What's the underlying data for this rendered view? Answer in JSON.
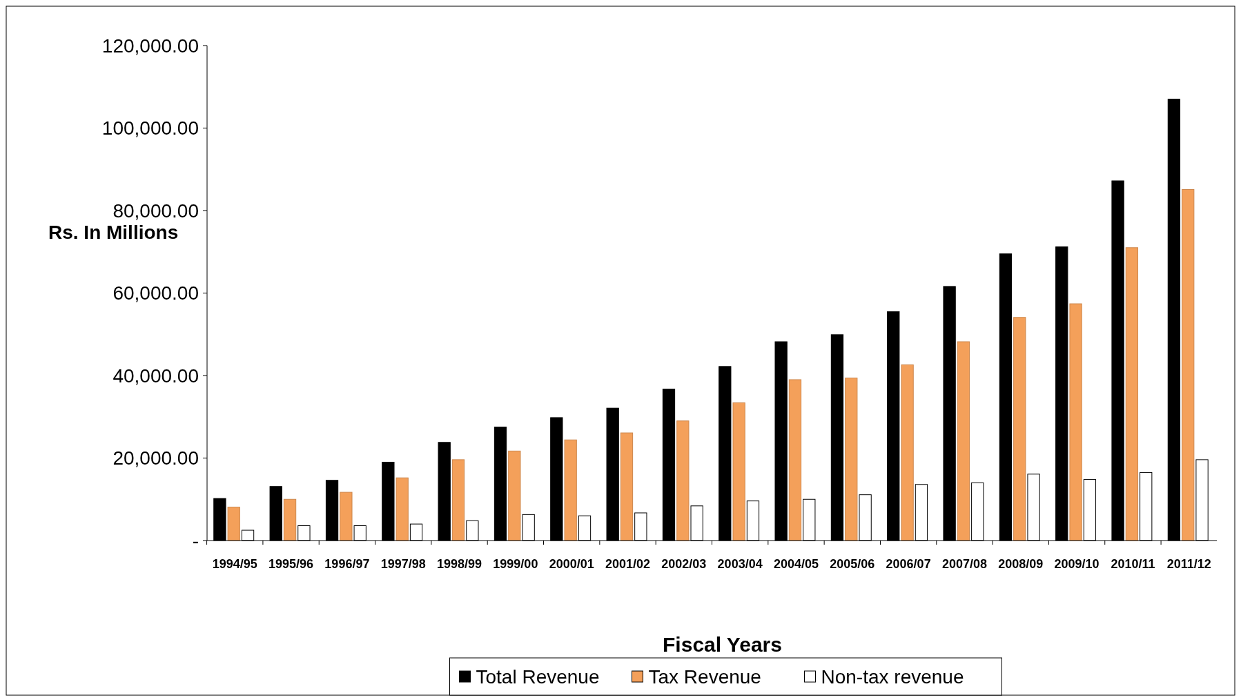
{
  "chart_data": {
    "type": "bar",
    "xlabel": "Fiscal Years",
    "ylabel": "Rs. In Millions",
    "categories": [
      "1994/95",
      "1995/96",
      "1996/97",
      "1997/98",
      "1998/99",
      "1999/00",
      "2000/01",
      "2001/02",
      "2002/03",
      "2003/04",
      "2004/05",
      "2005/06",
      "2006/07",
      "2007/08",
      "2008/09",
      "2009/10",
      "2010/11",
      "2011/12"
    ],
    "series": [
      {
        "name": "Total Revenue",
        "color": "#000000",
        "values": [
          10200,
          13100,
          14600,
          19000,
          23800,
          27500,
          29800,
          32100,
          36700,
          42200,
          48200,
          49900,
          55500,
          61600,
          69500,
          71200,
          87200,
          107000
        ]
      },
      {
        "name": "Tax Revenue",
        "color": "#f4a05a",
        "values": [
          8100,
          10000,
          11700,
          15200,
          19600,
          21700,
          24400,
          26100,
          29000,
          33400,
          39000,
          39400,
          42600,
          48200,
          54100,
          57400,
          71000,
          85100
        ]
      },
      {
        "name": "Non-tax revenue",
        "color": "#ffffff",
        "values": [
          2500,
          3600,
          3600,
          4000,
          4800,
          6300,
          6000,
          6700,
          8400,
          9600,
          10000,
          11100,
          13600,
          14000,
          16100,
          14800,
          16500,
          19600
        ]
      }
    ],
    "ylim": [
      0,
      120000
    ],
    "yticks": [
      {
        "value": 0,
        "label": "-"
      },
      {
        "value": 20000,
        "label": "20,000.00"
      },
      {
        "value": 40000,
        "label": "40,000.00"
      },
      {
        "value": 60000,
        "label": "60,000.00"
      },
      {
        "value": 80000,
        "label": "80,000.00"
      },
      {
        "value": 100000,
        "label": "100,000.00"
      },
      {
        "value": 120000,
        "label": "120,000.00"
      }
    ],
    "grid": false,
    "legend": "bottom"
  }
}
